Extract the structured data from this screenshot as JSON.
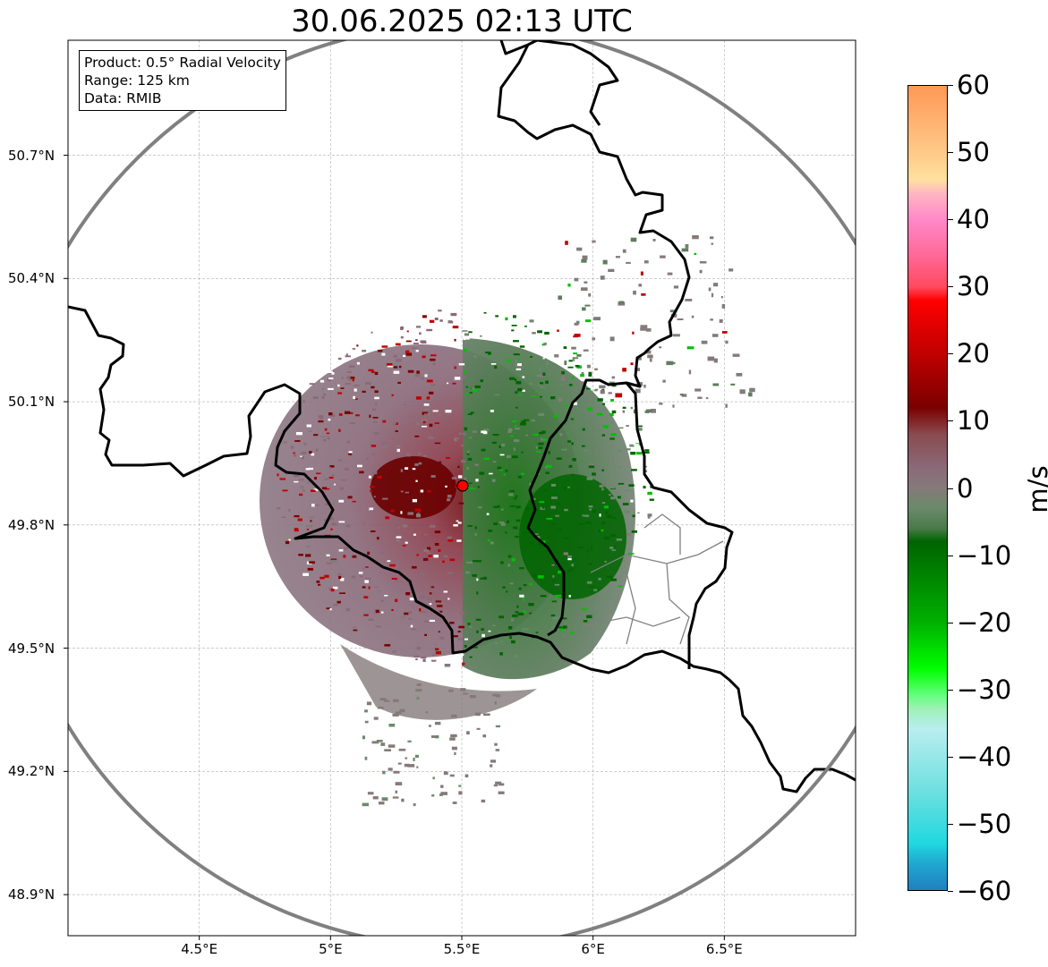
{
  "title": "30.06.2025 02:13 UTC",
  "info_box": {
    "product": "Product: 0.5° Radial Velocity",
    "range": "Range: 125 km",
    "data": "Data: RMIB"
  },
  "map": {
    "extent": {
      "lon_min": 4.0,
      "lon_max": 7.0,
      "lat_min": 48.8,
      "lat_max": 50.98
    },
    "radar_site": {
      "lon": 5.5,
      "lat": 49.915
    },
    "range_km": 125,
    "latitude_labels": [
      {
        "lat": 50.7,
        "text": "50.7°N"
      },
      {
        "lat": 50.4,
        "text": "50.4°N"
      },
      {
        "lat": 50.1,
        "text": "50.1°N"
      },
      {
        "lat": 49.8,
        "text": "49.8°N"
      },
      {
        "lat": 49.5,
        "text": "49.5°N"
      },
      {
        "lat": 49.2,
        "text": "49.2°N"
      },
      {
        "lat": 48.9,
        "text": "48.9°N"
      }
    ],
    "longitude_labels": [
      {
        "lon": 4.5,
        "text": "4.5°E"
      },
      {
        "lon": 5.0,
        "text": "5°E"
      },
      {
        "lon": 5.5,
        "text": "5.5°E"
      },
      {
        "lon": 6.0,
        "text": "6°E"
      },
      {
        "lon": 6.5,
        "text": "6.5°E"
      }
    ],
    "colors": {
      "range_ring": "#808080",
      "borders": "#000000",
      "subdivisions": "#808080",
      "grid": "#b0b0b0",
      "site_marker": "#ff0000"
    }
  },
  "colorbar": {
    "unit": "m/s",
    "min": -60,
    "max": 60,
    "ticks": [
      {
        "value": 60,
        "text": "60"
      },
      {
        "value": 50,
        "text": "50"
      },
      {
        "value": 40,
        "text": "40"
      },
      {
        "value": 30,
        "text": "30"
      },
      {
        "value": 20,
        "text": "20"
      },
      {
        "value": 10,
        "text": "10"
      },
      {
        "value": 0,
        "text": "0"
      },
      {
        "value": -10,
        "text": "−10"
      },
      {
        "value": -20,
        "text": "−20"
      },
      {
        "value": -30,
        "text": "−30"
      },
      {
        "value": -40,
        "text": "−40"
      },
      {
        "value": -50,
        "text": "−50"
      },
      {
        "value": -60,
        "text": "−60"
      }
    ],
    "color_stops": [
      {
        "value": 60,
        "color": "#ff9955"
      },
      {
        "value": 55,
        "color": "#ffb070"
      },
      {
        "value": 50,
        "color": "#ffca88"
      },
      {
        "value": 46,
        "color": "#ffe0a0"
      },
      {
        "value": 44,
        "color": "#ffb6c1"
      },
      {
        "value": 40,
        "color": "#ff88c8"
      },
      {
        "value": 35,
        "color": "#ff6a9a"
      },
      {
        "value": 30,
        "color": "#ff4a60"
      },
      {
        "value": 28,
        "color": "#ff0000"
      },
      {
        "value": 20,
        "color": "#c00000"
      },
      {
        "value": 12,
        "color": "#7a0000"
      },
      {
        "value": 8,
        "color": "#8a4a50"
      },
      {
        "value": 3,
        "color": "#8a6a78"
      },
      {
        "value": 0,
        "color": "#857a7a"
      },
      {
        "value": -3,
        "color": "#6a8a6a"
      },
      {
        "value": -6,
        "color": "#4a7a4a"
      },
      {
        "value": -8,
        "color": "#006400"
      },
      {
        "value": -20,
        "color": "#00b000"
      },
      {
        "value": -27,
        "color": "#00ff00"
      },
      {
        "value": -31,
        "color": "#66ff80"
      },
      {
        "value": -33,
        "color": "#a0f0b8"
      },
      {
        "value": -36,
        "color": "#b8eef0"
      },
      {
        "value": -45,
        "color": "#70e0e0"
      },
      {
        "value": -53,
        "color": "#20d8e0"
      },
      {
        "value": -56,
        "color": "#20a8d0"
      },
      {
        "value": -60,
        "color": "#2080c0"
      }
    ]
  }
}
